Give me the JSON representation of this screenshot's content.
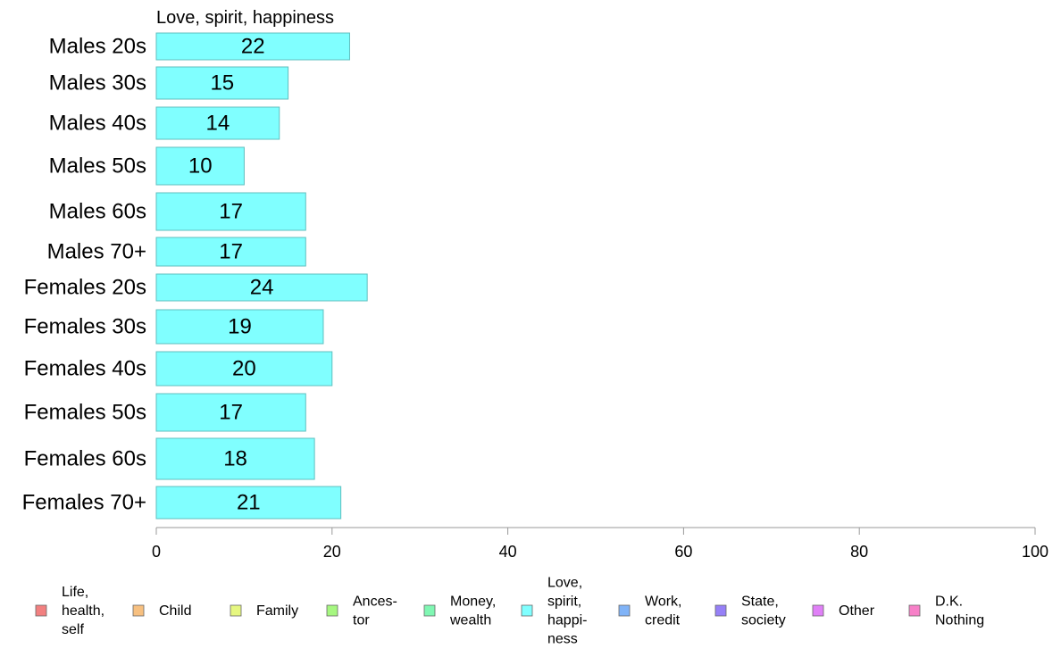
{
  "chart_data": {
    "type": "bar",
    "orientation": "horizontal",
    "title": "Love, spirit, happiness",
    "categories": [
      "Males 20s",
      "Males 30s",
      "Males 40s",
      "Males 50s",
      "Males 60s",
      "Males 70+",
      "Females 20s",
      "Females 30s",
      "Females 40s",
      "Females 50s",
      "Females 60s",
      "Females 70+"
    ],
    "series": [
      {
        "values": [
          22,
          15,
          14,
          10,
          17,
          17,
          24,
          19,
          20,
          17,
          18,
          21
        ]
      }
    ],
    "value_labels": [
      "22",
      "15",
      "14",
      "10",
      "17",
      "17",
      "24",
      "19",
      "20",
      "17",
      "18",
      "21"
    ],
    "xlim": [
      0,
      100
    ],
    "xticks": [
      0,
      20,
      40,
      60,
      80,
      100
    ],
    "xtick_labels": [
      "0",
      "20",
      "40",
      "60",
      "80",
      "100"
    ],
    "bar_color": "#80FFFF",
    "bar_edge_color": "#5fbfbf",
    "grid": false,
    "legend_position": "bottom",
    "legend": [
      {
        "lines": [
          "Life,",
          "health,",
          "self"
        ],
        "color": "#F28080"
      },
      {
        "lines": [
          "Child"
        ],
        "color": "#F7C080"
      },
      {
        "lines": [
          "Family"
        ],
        "color": "#E6F780"
      },
      {
        "lines": [
          "Ances-",
          "tor"
        ],
        "color": "#A6F780"
      },
      {
        "lines": [
          "Money,",
          "wealth"
        ],
        "color": "#80F7B3"
      },
      {
        "lines": [
          "Love,",
          "spirit,",
          "happi-",
          "ness"
        ],
        "color": "#80FFFF"
      },
      {
        "lines": [
          "Work,",
          "credit"
        ],
        "color": "#80B3F7"
      },
      {
        "lines": [
          "State,",
          "society"
        ],
        "color": "#9680F7"
      },
      {
        "lines": [
          "Other"
        ],
        "color": "#E080F7"
      },
      {
        "lines": [
          "D.K.",
          "Nothing"
        ],
        "color": "#F780C8"
      }
    ]
  }
}
